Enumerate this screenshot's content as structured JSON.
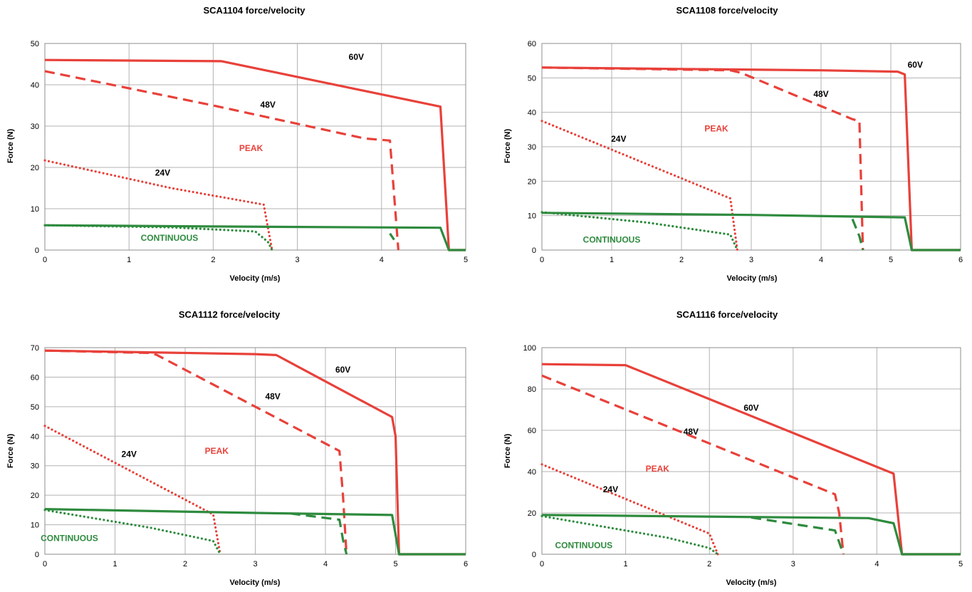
{
  "colors": {
    "peak": "#e8413a",
    "continuous": "#2e8b3e",
    "grid": "#b3b3b3",
    "frame": "#8c8c8c"
  },
  "chart_data": [
    {
      "type": "line",
      "title": "SCA1104 force/velocity",
      "xlabel": "Velocity (m/s)",
      "ylabel": "Force (N)",
      "xlim": [
        0,
        5
      ],
      "ylim": [
        0,
        50
      ],
      "xticks": [
        "0",
        "1",
        "2",
        "3",
        "4",
        "5"
      ],
      "yticks": [
        "0",
        "10",
        "20",
        "30",
        "40",
        "50"
      ],
      "grid": true,
      "annotations": [
        {
          "text": "60V",
          "x": 3.7,
          "y": 46,
          "color": "black"
        },
        {
          "text": "48V",
          "x": 2.65,
          "y": 34.5,
          "color": "black"
        },
        {
          "text": "24V",
          "x": 1.4,
          "y": 18,
          "color": "black"
        },
        {
          "text": "PEAK",
          "x": 2.45,
          "y": 24,
          "color": "peak"
        },
        {
          "text": "CONTINUOUS",
          "x": 1.48,
          "y": 2.2,
          "color": "continuous"
        }
      ],
      "series": [
        {
          "style": "peak-solid",
          "x": [
            0,
            2.1,
            4.7,
            4.8,
            5.0
          ],
          "y": [
            46,
            45.7,
            34.7,
            0,
            0
          ]
        },
        {
          "style": "peak-dashed",
          "x": [
            0,
            2.0,
            3.8,
            4.1,
            4.2
          ],
          "y": [
            43.3,
            35,
            27,
            26.5,
            0
          ]
        },
        {
          "style": "peak-dotted",
          "x": [
            0,
            1.5,
            2.6,
            2.7
          ],
          "y": [
            21.7,
            15,
            11,
            0
          ]
        },
        {
          "style": "cont-solid",
          "x": [
            0,
            2.0,
            4.7,
            4.8,
            5.0
          ],
          "y": [
            6,
            5.7,
            5.4,
            0,
            0
          ]
        },
        {
          "style": "cont-dashed",
          "x": [
            4.1,
            4.15
          ],
          "y": [
            4,
            2.5
          ]
        },
        {
          "style": "cont-dotted",
          "x": [
            0,
            1.5,
            2.5,
            2.65,
            2.7
          ],
          "y": [
            6,
            5.5,
            4.5,
            2,
            0
          ]
        }
      ]
    },
    {
      "type": "line",
      "title": "SCA1108 force/velocity",
      "xlabel": "Velocity (m/s)",
      "ylabel": "Force (N)",
      "xlim": [
        0,
        6
      ],
      "ylim": [
        0,
        60
      ],
      "xticks": [
        "0",
        "1",
        "2",
        "3",
        "4",
        "5",
        "6"
      ],
      "yticks": [
        "0",
        "10",
        "20",
        "30",
        "40",
        "50",
        "60"
      ],
      "grid": true,
      "annotations": [
        {
          "text": "60V",
          "x": 5.35,
          "y": 53,
          "color": "black"
        },
        {
          "text": "48V",
          "x": 4.0,
          "y": 44.5,
          "color": "black"
        },
        {
          "text": "24V",
          "x": 1.1,
          "y": 31.5,
          "color": "black"
        },
        {
          "text": "PEAK",
          "x": 2.5,
          "y": 34.5,
          "color": "peak"
        },
        {
          "text": "CONTINUOUS",
          "x": 1.0,
          "y": 2.2,
          "color": "continuous"
        }
      ],
      "series": [
        {
          "style": "peak-solid",
          "x": [
            0,
            2.0,
            4.0,
            5.1,
            5.2,
            5.3,
            6.0
          ],
          "y": [
            53,
            52.6,
            52.2,
            51.8,
            51,
            0,
            0
          ]
        },
        {
          "style": "peak-dashed",
          "x": [
            0,
            2.7,
            2.85,
            4.45,
            4.55,
            4.6
          ],
          "y": [
            53,
            52.2,
            51.5,
            38,
            37.5,
            0
          ]
        },
        {
          "style": "peak-dotted",
          "x": [
            0,
            2.7,
            2.8
          ],
          "y": [
            37.5,
            15,
            0
          ]
        },
        {
          "style": "cont-solid",
          "x": [
            0,
            3.0,
            5.2,
            5.3,
            6.0
          ],
          "y": [
            10.8,
            10.2,
            9.5,
            0,
            0
          ]
        },
        {
          "style": "cont-dashed",
          "x": [
            4.45,
            4.55,
            4.6
          ],
          "y": [
            9,
            4,
            0
          ]
        },
        {
          "style": "cont-dotted",
          "x": [
            0,
            1.5,
            2.7,
            2.8
          ],
          "y": [
            11,
            8,
            4.5,
            0
          ]
        }
      ]
    },
    {
      "type": "line",
      "title": "SCA1112 force/velocity",
      "xlabel": "Velocity (m/s)",
      "ylabel": "Force (N)",
      "xlim": [
        0,
        6
      ],
      "ylim": [
        0,
        70
      ],
      "xticks": [
        "0",
        "1",
        "2",
        "3",
        "4",
        "5",
        "6"
      ],
      "yticks": [
        "0",
        "10",
        "20",
        "30",
        "40",
        "50",
        "60",
        "70"
      ],
      "grid": true,
      "annotations": [
        {
          "text": "60V",
          "x": 4.25,
          "y": 61.5,
          "color": "black"
        },
        {
          "text": "48V",
          "x": 3.25,
          "y": 52.5,
          "color": "black"
        },
        {
          "text": "24V",
          "x": 1.2,
          "y": 33,
          "color": "black"
        },
        {
          "text": "PEAK",
          "x": 2.45,
          "y": 34,
          "color": "peak"
        },
        {
          "text": "CONTINUOUS",
          "x": 0.35,
          "y": 4.5,
          "color": "continuous"
        }
      ],
      "series": [
        {
          "style": "peak-solid",
          "x": [
            0,
            3.0,
            3.3,
            4.95,
            5.0,
            5.05,
            6.0
          ],
          "y": [
            69,
            67.8,
            67.5,
            46.5,
            40,
            0,
            0
          ]
        },
        {
          "style": "peak-dashed",
          "x": [
            0,
            1.5,
            1.6,
            4.2,
            4.25,
            4.3
          ],
          "y": [
            69,
            68.2,
            67.5,
            35,
            20,
            0
          ]
        },
        {
          "style": "peak-dotted",
          "x": [
            0,
            2.4,
            2.5
          ],
          "y": [
            43.5,
            13.5,
            0
          ]
        },
        {
          "style": "cont-solid",
          "x": [
            0,
            3.0,
            4.95,
            5.05,
            6.0
          ],
          "y": [
            15.3,
            14,
            13.3,
            0,
            0
          ]
        },
        {
          "style": "cont-dashed",
          "x": [
            3.5,
            4.2,
            4.25,
            4.3
          ],
          "y": [
            13.8,
            11.7,
            5,
            0
          ]
        },
        {
          "style": "cont-dotted",
          "x": [
            0,
            1.5,
            2.4,
            2.5
          ],
          "y": [
            15,
            9,
            4.5,
            0
          ]
        }
      ]
    },
    {
      "type": "line",
      "title": "SCA1116 force/velocity",
      "xlabel": "Velocity (m/s)",
      "ylabel": "Force (N)",
      "xlim": [
        0,
        5
      ],
      "ylim": [
        0,
        100
      ],
      "xticks": [
        "0",
        "1",
        "2",
        "3",
        "4",
        "5"
      ],
      "yticks": [
        "0",
        "20",
        "40",
        "60",
        "80",
        "100"
      ],
      "grid": true,
      "annotations": [
        {
          "text": "60V",
          "x": 2.5,
          "y": 69.5,
          "color": "black"
        },
        {
          "text": "48V",
          "x": 1.78,
          "y": 58,
          "color": "black"
        },
        {
          "text": "24V",
          "x": 0.82,
          "y": 30,
          "color": "black"
        },
        {
          "text": "PEAK",
          "x": 1.38,
          "y": 40,
          "color": "peak"
        },
        {
          "text": "CONTINUOUS",
          "x": 0.5,
          "y": 3,
          "color": "continuous"
        }
      ],
      "series": [
        {
          "style": "peak-solid",
          "x": [
            0,
            1.0,
            4.2,
            4.3,
            5.0
          ],
          "y": [
            92,
            91.5,
            39,
            0,
            0
          ]
        },
        {
          "style": "peak-dashed",
          "x": [
            0,
            3.5,
            3.55,
            3.6
          ],
          "y": [
            86.5,
            29,
            20,
            0
          ]
        },
        {
          "style": "peak-dotted",
          "x": [
            0,
            2.0,
            2.1
          ],
          "y": [
            43.5,
            10,
            0
          ]
        },
        {
          "style": "cont-solid",
          "x": [
            0,
            3.9,
            4.2,
            4.3,
            5.0
          ],
          "y": [
            19,
            17.5,
            15,
            0,
            0
          ]
        },
        {
          "style": "cont-dashed",
          "x": [
            2.5,
            3.5,
            3.6
          ],
          "y": [
            17.8,
            11.5,
            0
          ]
        },
        {
          "style": "cont-dotted",
          "x": [
            0,
            1.5,
            2.0,
            2.1
          ],
          "y": [
            18.5,
            8,
            3,
            0
          ]
        }
      ]
    }
  ]
}
